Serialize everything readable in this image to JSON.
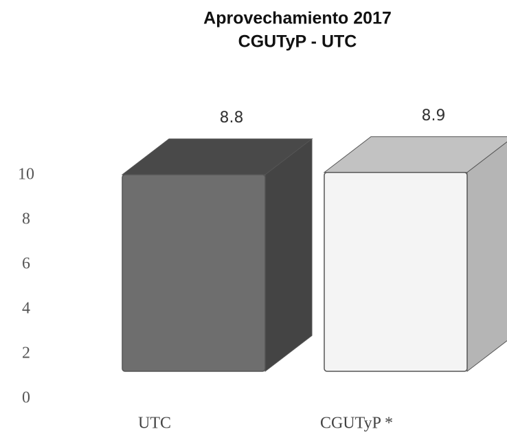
{
  "chart_data": {
    "type": "bar3d",
    "title": [
      "Aprovechamiento 2017",
      "CGUTyP - UTC"
    ],
    "categories": [
      "UTC",
      "CGUTyP *"
    ],
    "values": [
      8.8,
      8.9
    ],
    "colors": [
      "#6e6e6e",
      "#f4f4f4"
    ],
    "ylim": [
      0,
      10
    ],
    "yticks": [
      0,
      2,
      4,
      6,
      8,
      10
    ]
  }
}
